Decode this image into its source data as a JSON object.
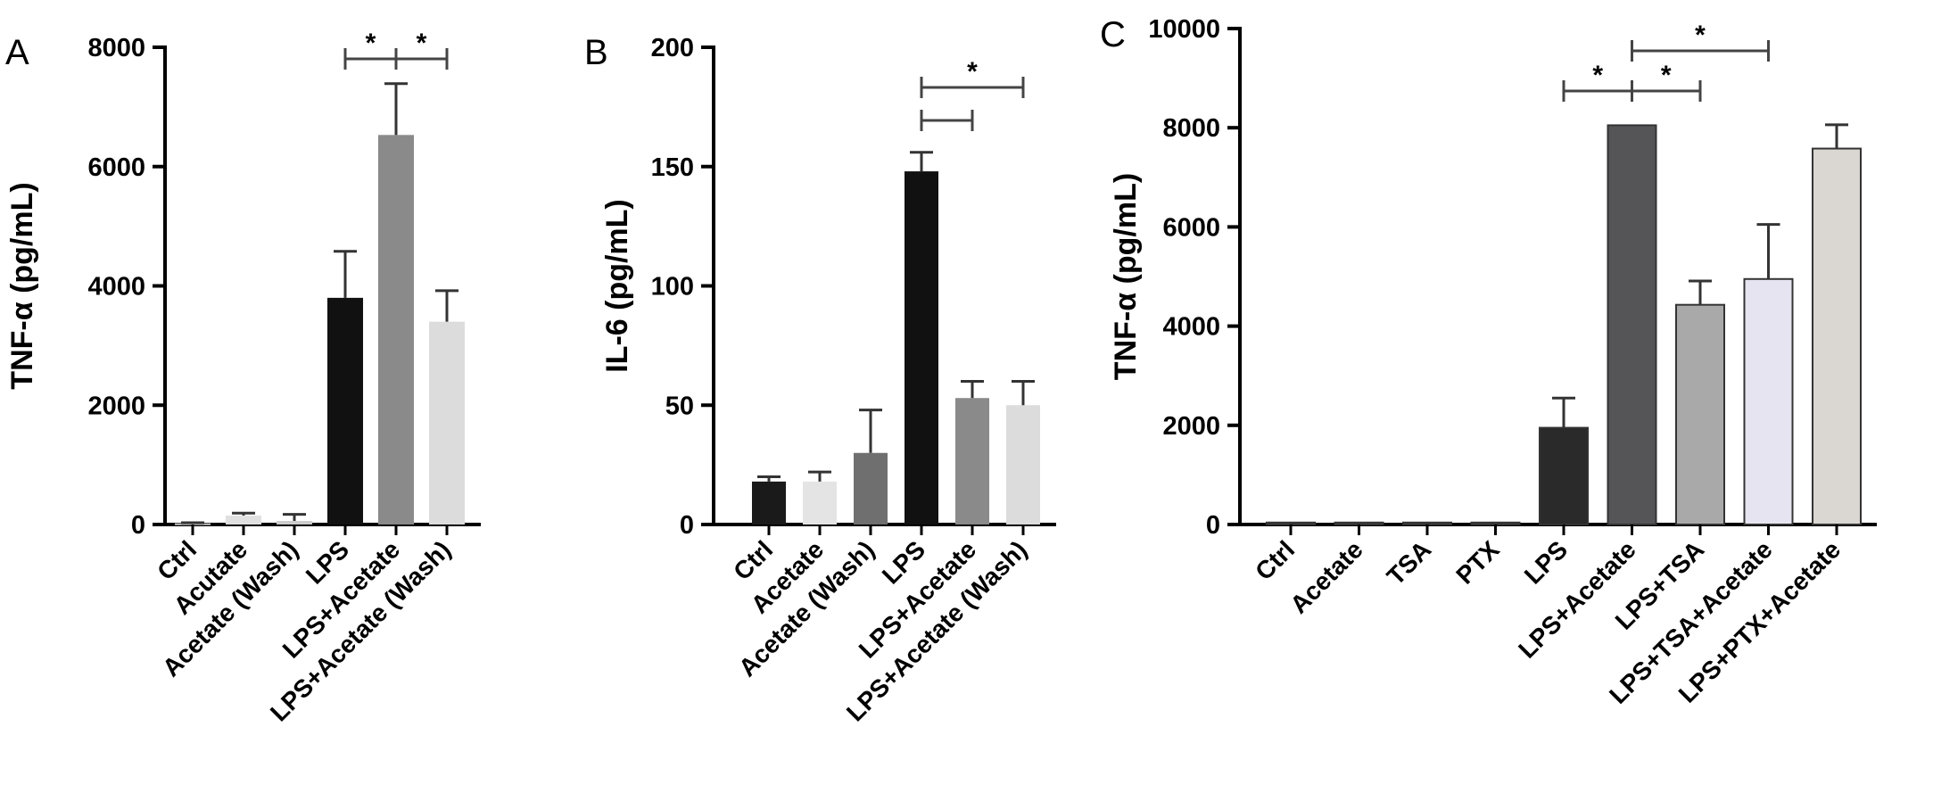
{
  "chart_data": [
    {
      "type": "bar",
      "panel_label": "A",
      "ylabel": "TNF-α (pg/mL)",
      "ylim": [
        0,
        8000
      ],
      "yticks": [
        0,
        2000,
        4000,
        6000,
        8000
      ],
      "categories": [
        "Ctrl",
        "Acutate",
        "Acetate (Wash)",
        "LPS",
        "LPS+Acetate",
        "LPS+Acetate (Wash)"
      ],
      "values": [
        20,
        150,
        60,
        3800,
        6530,
        3400
      ],
      "errors": [
        10,
        40,
        110,
        780,
        860,
        520
      ],
      "colors": [
        "#cccccc",
        "#e0e0e0",
        "#cccccc",
        "#111111",
        "#8a8a8a",
        "#dcdcdc"
      ],
      "significance": [
        {
          "from": 3,
          "to": 4,
          "label": "*"
        },
        {
          "from": 4,
          "to": 5,
          "label": "*"
        }
      ]
    },
    {
      "type": "bar",
      "panel_label": "B",
      "ylabel": "IL-6 (pg/mL)",
      "ylim": [
        0,
        200
      ],
      "yticks": [
        0,
        50,
        100,
        150,
        200
      ],
      "categories": [
        "Ctrl",
        "Acetate",
        "Acetate (Wash)",
        "LPS",
        "LPS+Acetate",
        "LPS+Acetate (Wash)"
      ],
      "values": [
        18,
        18,
        30,
        148,
        53,
        50
      ],
      "errors": [
        2,
        4,
        18,
        8,
        7,
        10
      ],
      "colors": [
        "#1a1a1a",
        "#e4e4e4",
        "#6f6f6f",
        "#111111",
        "#8a8a8a",
        "#dcdcdc"
      ],
      "significance": [
        {
          "from": 3,
          "to": 4,
          "label": ""
        },
        {
          "from": 3,
          "to": 5,
          "label": "*"
        }
      ]
    },
    {
      "type": "bar",
      "panel_label": "C",
      "ylabel": "TNF-α (pg/mL)",
      "ylim": [
        0,
        10000
      ],
      "yticks": [
        0,
        2000,
        4000,
        6000,
        8000,
        10000
      ],
      "categories": [
        "Ctrl",
        "Acetate",
        "TSA",
        "PTX",
        "LPS",
        "LPS+Acetate",
        "LPS+TSA",
        "LPS+TSA+Acetate",
        "LPS+PTX+Acetate"
      ],
      "values": [
        40,
        40,
        40,
        40,
        1950,
        8050,
        4430,
        4950,
        7580
      ],
      "errors": [
        0,
        0,
        0,
        0,
        600,
        0,
        480,
        1100,
        480
      ],
      "colors": [
        "#555555",
        "#555555",
        "#555555",
        "#555555",
        "#2a2a2a",
        "#555558",
        "#a9a9a9",
        "#e6e4f0",
        "#dad6d2"
      ],
      "significance": [
        {
          "from": 4,
          "to": 5,
          "label": "*"
        },
        {
          "from": 5,
          "to": 6,
          "label": "*"
        },
        {
          "from": 5,
          "to": 7,
          "label": "*"
        }
      ]
    }
  ]
}
